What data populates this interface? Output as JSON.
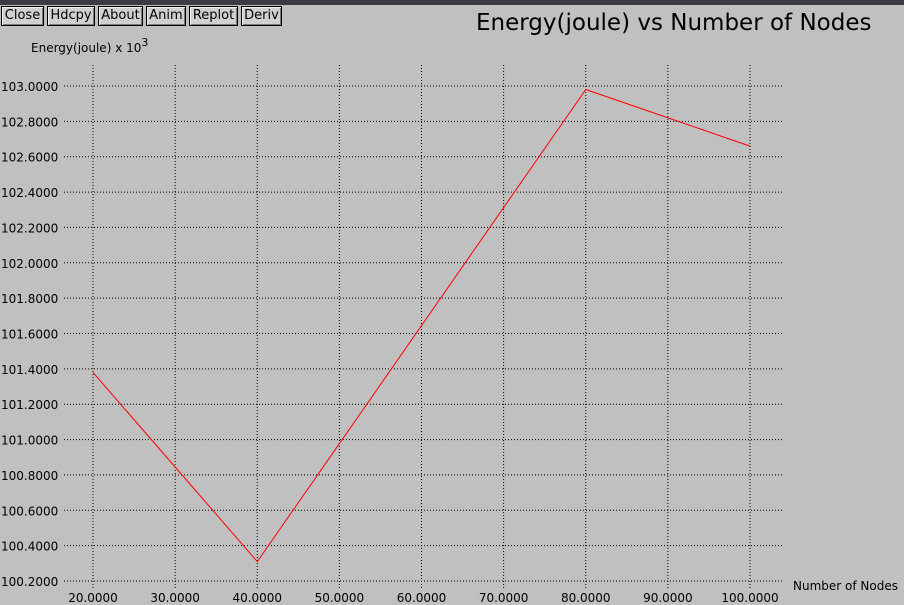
{
  "window": {
    "buttons": [
      "Close",
      "Hdcpy",
      "About",
      "Anim",
      "Replot",
      "Deriv"
    ]
  },
  "chart_data": {
    "type": "line",
    "title": "Energy(joule) vs Number of Nodes",
    "ylabel": "Energy(joule) x 10",
    "ylabel_exponent": "3",
    "xlabel": "Number of Nodes",
    "xlim": [
      20,
      100
    ],
    "ylim": [
      100.2,
      103.0
    ],
    "x_ticks": [
      "20.0000",
      "30.0000",
      "40.0000",
      "50.0000",
      "60.0000",
      "70.0000",
      "80.0000",
      "90.0000",
      "100.0000"
    ],
    "y_ticks": [
      "100.2000",
      "100.4000",
      "100.6000",
      "100.8000",
      "101.0000",
      "101.2000",
      "101.4000",
      "101.6000",
      "101.8000",
      "102.0000",
      "102.2000",
      "102.4000",
      "102.6000",
      "102.8000",
      "103.0000"
    ],
    "grid": true,
    "series": [
      {
        "color": "#ff0000",
        "x": [
          20,
          40,
          80,
          100
        ],
        "y": [
          101.38,
          100.31,
          102.98,
          102.66
        ]
      }
    ]
  }
}
